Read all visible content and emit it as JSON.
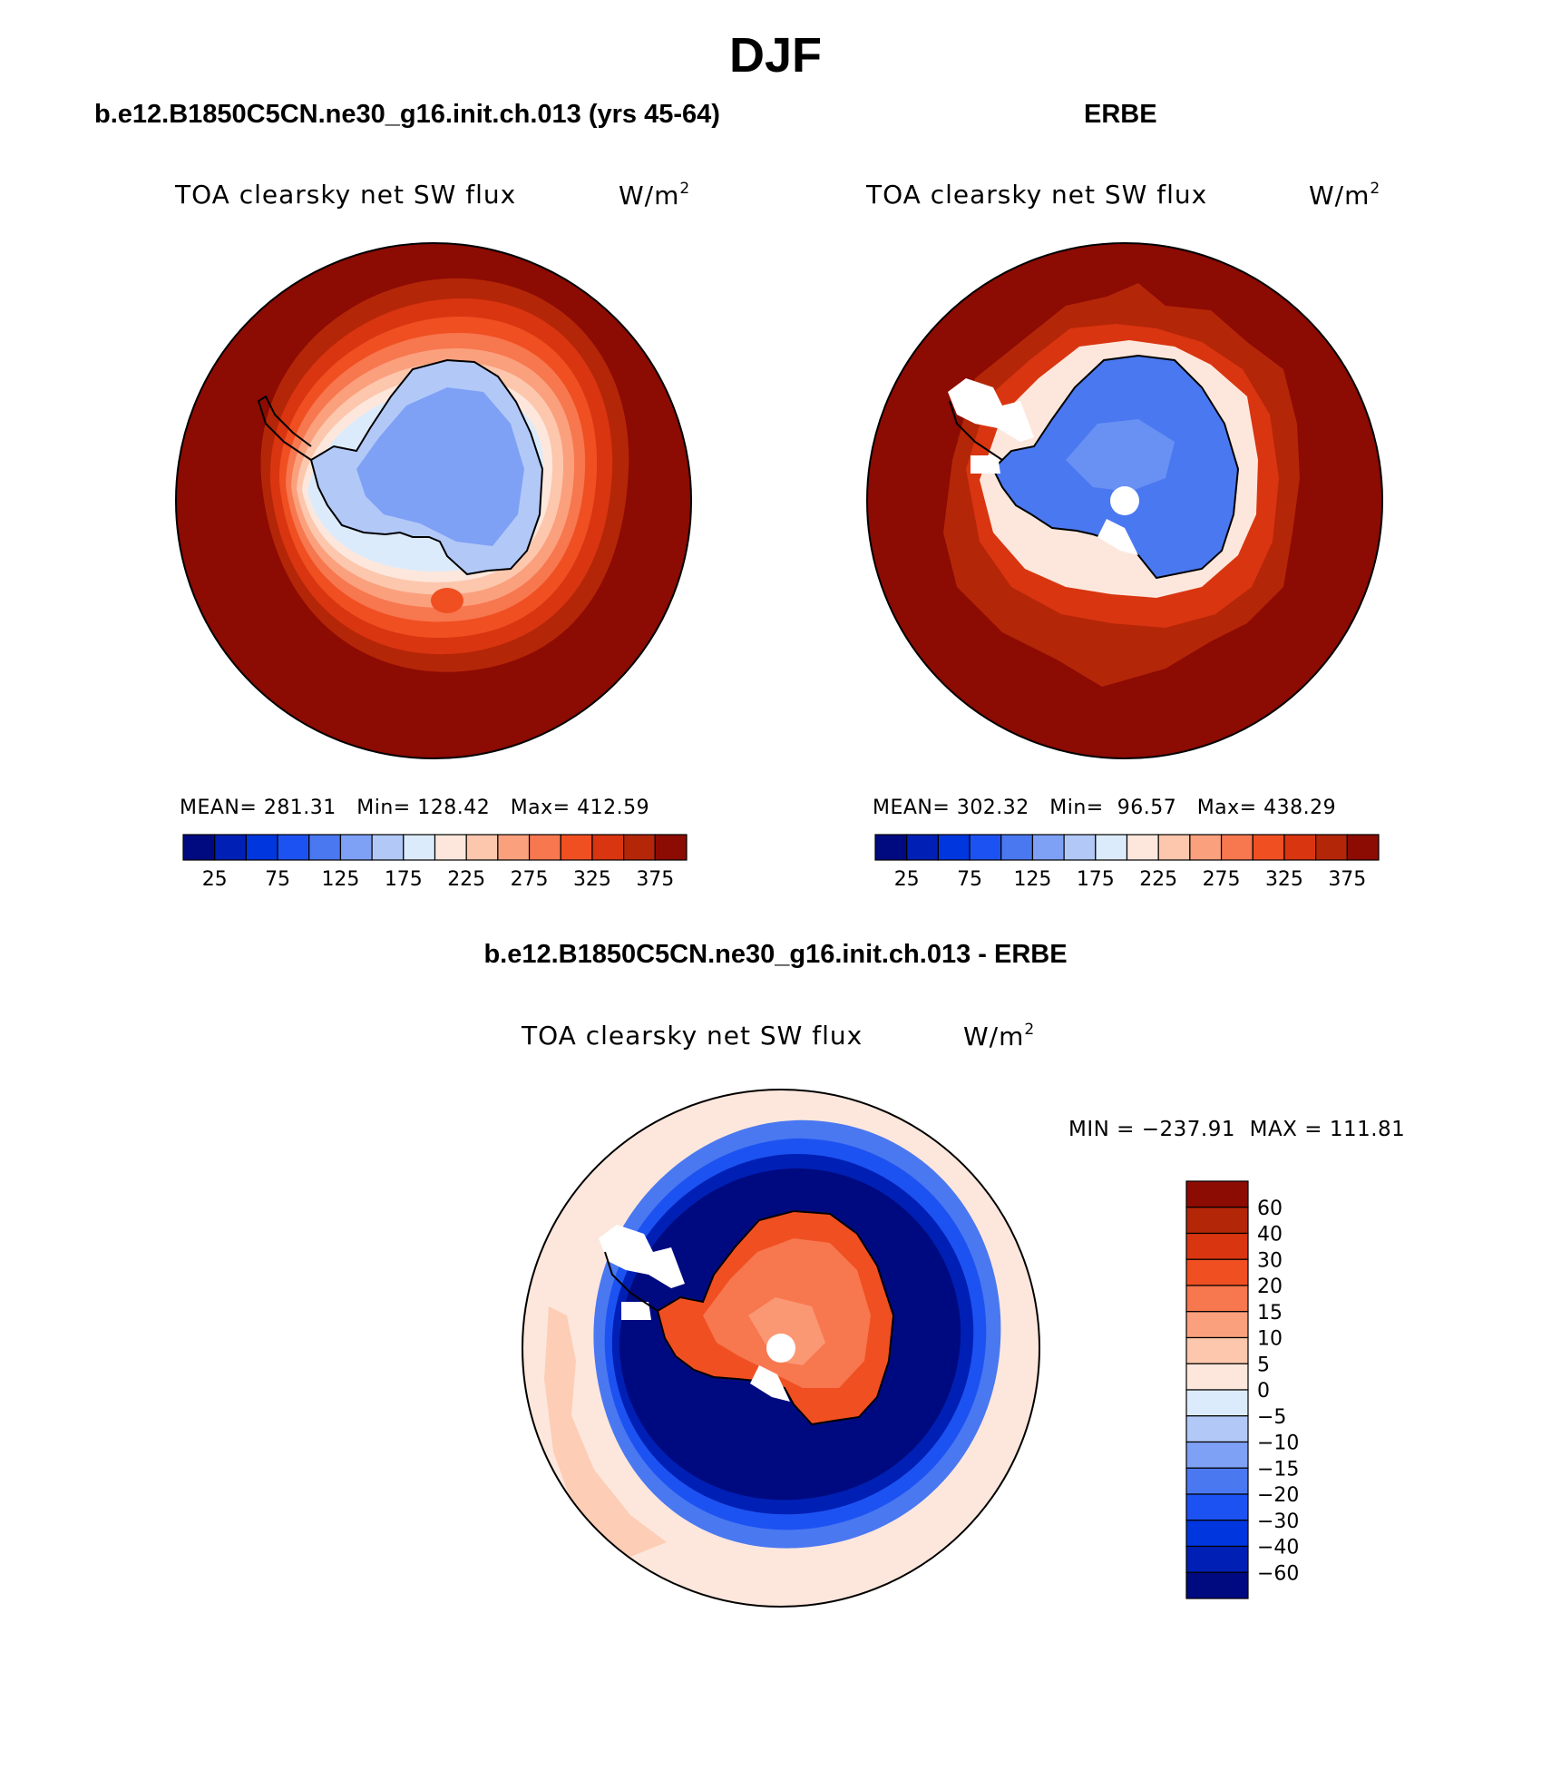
{
  "figure": {
    "title": "DJF"
  },
  "panels": {
    "model": {
      "title": "b.e12.B1850C5CN.ne30_g16.init.ch.013 (yrs 45-64)",
      "variable": "TOA clearsky net SW flux",
      "unit_base": "W/m",
      "unit_exp": "2",
      "stats": "MEAN= 281.31   Min= 128.42   Max= 412.59"
    },
    "obs": {
      "title": "ERBE",
      "variable": "TOA clearsky net SW flux",
      "unit_base": "W/m",
      "unit_exp": "2",
      "stats": "MEAN= 302.32   Min=  96.57   Max= 438.29"
    },
    "diff": {
      "title": "b.e12.B1850C5CN.ne30_g16.init.ch.013 - ERBE",
      "variable": "TOA clearsky net SW flux",
      "unit_base": "W/m",
      "unit_exp": "2",
      "minmax": "MIN = −237.91  MAX = 111.81"
    }
  },
  "colorbars": {
    "absolute": {
      "colors": [
        "#000a80",
        "#0020b5",
        "#0036dd",
        "#1d52f2",
        "#4a78f0",
        "#7ea1f5",
        "#b2c9f8",
        "#dcebfb",
        "#fde7dc",
        "#fcc7ad",
        "#fba07d",
        "#f7774f",
        "#f04f22",
        "#d93510",
        "#b42608",
        "#8c0b03"
      ],
      "tick_labels": [
        "25",
        "75",
        "125",
        "175",
        "225",
        "275",
        "325",
        "375"
      ]
    },
    "difference": {
      "colors": [
        "#000a80",
        "#0020b5",
        "#0036dd",
        "#1d52f2",
        "#4a78f0",
        "#7ea1f5",
        "#b2c9f8",
        "#dcebfb",
        "#fde7dc",
        "#fcc7ad",
        "#fba07d",
        "#f7774f",
        "#f04f22",
        "#d93510",
        "#b42608",
        "#8c0b03"
      ],
      "tick_labels": [
        "60",
        "40",
        "30",
        "20",
        "15",
        "10",
        "5",
        "0",
        "−5",
        "−10",
        "−15",
        "−20",
        "−30",
        "−40",
        "−60"
      ]
    }
  }
}
